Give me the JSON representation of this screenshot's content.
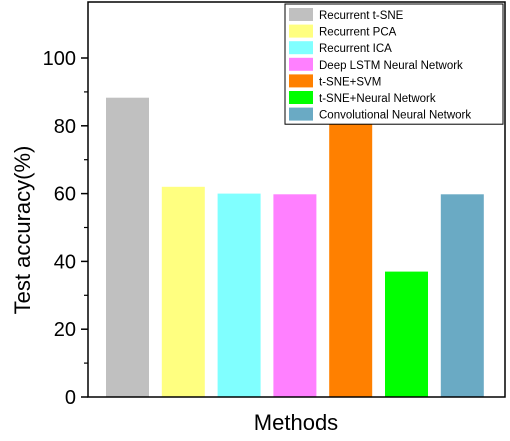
{
  "chart_data": {
    "type": "bar",
    "categories": [
      "Recurrent t-SNE",
      "Recurrent PCA",
      "Recurrent ICA",
      "Deep LSTM Neural Network",
      "t-SNE+SVM",
      "t-SNE+Neural Network",
      "Convolutional Neural Network"
    ],
    "values": [
      88.3,
      62.0,
      60.0,
      59.8,
      81.0,
      37.0,
      59.8
    ],
    "colors": [
      "#c0c0c0",
      "#ffff80",
      "#80ffff",
      "#ff80ff",
      "#ff8000",
      "#00ff00",
      "#6aaac4"
    ],
    "xlabel": "Methods",
    "ylabel": "Test accuracy(%)",
    "ylim": [
      0,
      100
    ],
    "yticks": [
      0,
      20,
      40,
      60,
      80,
      100
    ],
    "legend": {
      "position": "top-right",
      "entries": [
        "Recurrent t-SNE",
        "Recurrent PCA",
        "Recurrent ICA",
        "Deep LSTM Neural Network",
        "t-SNE+SVM",
        "t-SNE+Neural Network",
        "Convolutional Neural Network"
      ]
    },
    "grid": false
  }
}
